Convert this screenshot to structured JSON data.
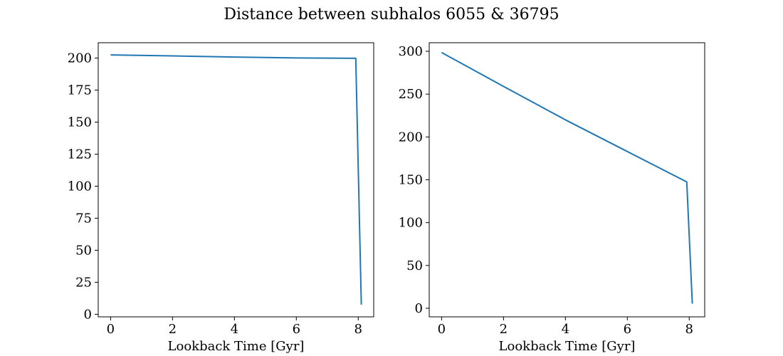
{
  "figure": {
    "title": "Distance between subhalos 6055 & 36795"
  },
  "chart_data": [
    {
      "type": "line",
      "title": "",
      "xlabel": "Lookback Time [Gyr]",
      "ylabel": "",
      "xlim": [
        -0.4,
        8.5
      ],
      "ylim": [
        -2,
        212
      ],
      "xticks": [
        0,
        2,
        4,
        6,
        8
      ],
      "yticks": [
        0,
        25,
        50,
        75,
        100,
        125,
        150,
        175,
        200
      ],
      "grid": false,
      "series": [
        {
          "color": "#1f77b4",
          "x": [
            0.0,
            2.0,
            4.0,
            6.0,
            7.92,
            8.1
          ],
          "y": [
            202.5,
            201.7,
            200.8,
            200.1,
            199.8,
            7.5
          ]
        }
      ]
    },
    {
      "type": "line",
      "title": "",
      "xlabel": "Lookback Time [Gyr]",
      "ylabel": "",
      "xlim": [
        -0.4,
        8.5
      ],
      "ylim": [
        -10,
        310
      ],
      "xticks": [
        0,
        2,
        4,
        6,
        8
      ],
      "yticks": [
        0,
        50,
        100,
        150,
        200,
        250,
        300
      ],
      "grid": false,
      "series": [
        {
          "color": "#1f77b4",
          "x": [
            0.0,
            2.0,
            4.0,
            6.0,
            7.92,
            8.1
          ],
          "y": [
            298.5,
            259.0,
            220.0,
            183.0,
            147.5,
            5.5
          ]
        }
      ]
    }
  ]
}
